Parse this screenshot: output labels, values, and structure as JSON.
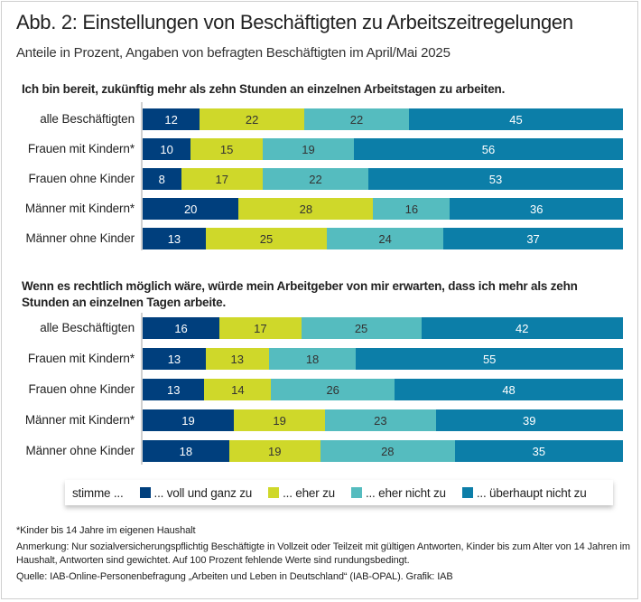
{
  "header": {
    "title": "Abb. 2: Einstellungen von Beschäftigten zu Arbeitszeitregelungen",
    "subtitle": "Anteile in Prozent, Angaben von befragten Beschäftigten im April/Mai 2025"
  },
  "colors": {
    "voll_und_ganz": "#003f7d",
    "eher": "#cfd82a",
    "eher_nicht": "#55bcbf",
    "ueberhaupt_nicht": "#0c7ea8"
  },
  "chart_data": [
    {
      "type": "bar",
      "orientation": "horizontal",
      "stacked": true,
      "title": "Ich bin bereit, zukünftig mehr als zehn Stunden an einzelnen Arbeitstagen zu arbeiten.",
      "xlabel": "",
      "ylabel": "",
      "xlim": [
        0,
        100
      ],
      "grid": false,
      "categories": [
        "alle Beschäftigten",
        "Frauen mit Kindern*",
        "Frauen ohne Kinder",
        "Männer mit Kindern*",
        "Männer ohne Kinder"
      ],
      "series": [
        {
          "name": "... voll und ganz zu",
          "color": "#003f7d",
          "values": [
            12,
            10,
            8,
            20,
            13
          ]
        },
        {
          "name": "... eher zu",
          "color": "#cfd82a",
          "values": [
            22,
            15,
            17,
            28,
            25
          ]
        },
        {
          "name": "... eher nicht zu",
          "color": "#55bcbf",
          "values": [
            22,
            19,
            22,
            16,
            24
          ]
        },
        {
          "name": "... überhaupt nicht zu",
          "color": "#0c7ea8",
          "values": [
            45,
            56,
            53,
            36,
            37
          ]
        }
      ]
    },
    {
      "type": "bar",
      "orientation": "horizontal",
      "stacked": true,
      "title": "Wenn es rechtlich möglich wäre, würde mein Arbeitgeber von mir erwarten, dass ich mehr als zehn Stunden an einzelnen Tagen arbeite.",
      "xlabel": "",
      "ylabel": "",
      "xlim": [
        0,
        100
      ],
      "grid": false,
      "categories": [
        "alle Beschäftigten",
        "Frauen mit Kindern*",
        "Frauen ohne Kinder",
        "Männer mit Kindern*",
        "Männer ohne Kinder"
      ],
      "series": [
        {
          "name": "... voll und ganz zu",
          "color": "#003f7d",
          "values": [
            16,
            13,
            13,
            19,
            18
          ]
        },
        {
          "name": "... eher zu",
          "color": "#cfd82a",
          "values": [
            17,
            13,
            14,
            19,
            19
          ]
        },
        {
          "name": "... eher nicht zu",
          "color": "#55bcbf",
          "values": [
            25,
            18,
            26,
            23,
            28
          ]
        },
        {
          "name": "... überhaupt nicht zu",
          "color": "#0c7ea8",
          "values": [
            42,
            55,
            48,
            39,
            35
          ]
        }
      ]
    }
  ],
  "legend": {
    "lead": "stimme ...",
    "placement": "bottom",
    "items": [
      {
        "label": "... voll und ganz zu",
        "color": "#003f7d"
      },
      {
        "label": "... eher zu",
        "color": "#cfd82a"
      },
      {
        "label": "... eher nicht zu",
        "color": "#55bcbf"
      },
      {
        "label": "... überhaupt nicht zu",
        "color": "#0c7ea8"
      }
    ]
  },
  "notes": {
    "footnote": "*Kinder bis 14 Jahre im eigenen Haushalt",
    "remark": "Anmerkung: Nur sozialversicherungspflichtig Beschäftigte in Vollzeit oder Teilzeit mit gültigen Antworten, Kinder bis zum Alter von 14 Jahren im Haushalt, Antworten sind gewichtet. Auf 100 Prozent fehlende Werte sind rundungsbedingt.",
    "source": "Quelle: IAB-Online-Personenbefragung „Arbeiten und Leben in Deutschland“ (IAB-OPAL). Grafik: IAB"
  }
}
